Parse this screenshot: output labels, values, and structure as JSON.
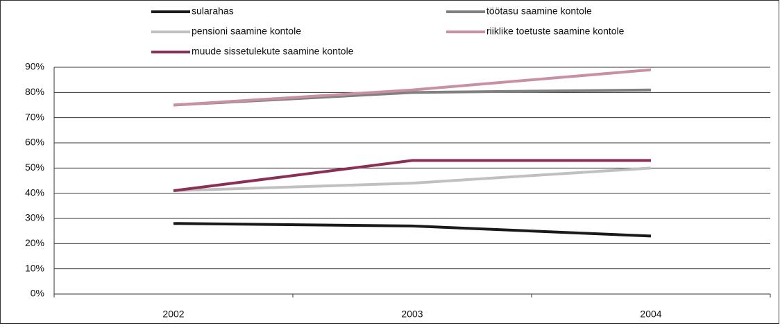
{
  "chart_data": {
    "type": "line",
    "categories": [
      "2002",
      "2003",
      "2004"
    ],
    "series": [
      {
        "name": "sularahas",
        "color": "#1a1a1a",
        "values": [
          28,
          27,
          23
        ]
      },
      {
        "name": "töötasu saamine kontole",
        "color": "#808080",
        "values": [
          75,
          80,
          81
        ]
      },
      {
        "name": "pensioni saamine kontole",
        "color": "#c0c0c0",
        "values": [
          41,
          44,
          50
        ]
      },
      {
        "name": "riiklike toetuste saamine kontole",
        "color": "#c990a2",
        "values": [
          75,
          81,
          89
        ]
      },
      {
        "name": "muude sissetulekute saamine kontole",
        "color": "#8b2f55",
        "values": [
          41,
          53,
          53
        ]
      }
    ],
    "ylim": [
      0,
      90
    ],
    "yticks": [
      {
        "value": 0,
        "label": "0%"
      },
      {
        "value": 10,
        "label": "10%"
      },
      {
        "value": 20,
        "label": "20%"
      },
      {
        "value": 30,
        "label": "30%"
      },
      {
        "value": 40,
        "label": "40%"
      },
      {
        "value": 50,
        "label": "50%"
      },
      {
        "value": 60,
        "label": "60%"
      },
      {
        "value": 70,
        "label": "70%"
      },
      {
        "value": 80,
        "label": "80%"
      },
      {
        "value": 90,
        "label": "90%"
      }
    ],
    "grid": true,
    "legend": "top"
  }
}
